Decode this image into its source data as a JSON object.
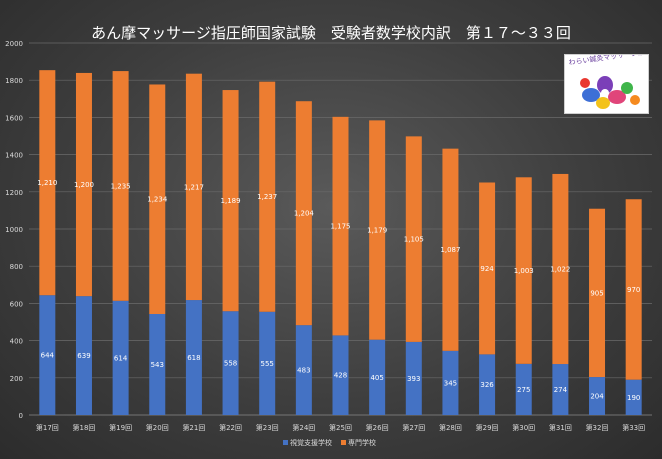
{
  "chart_data": {
    "type": "bar",
    "stacked": true,
    "title": "あん摩マッサージ指圧師国家試験　受験者数学校内訳　第１７～３３回",
    "categories": [
      "第17回",
      "第18回",
      "第19回",
      "第20回",
      "第21回",
      "第22回",
      "第23回",
      "第24回",
      "第25回",
      "第26回",
      "第27回",
      "第28回",
      "第29回",
      "第30回",
      "第31回",
      "第32回",
      "第33回"
    ],
    "series": [
      {
        "name": "視覚支援学校",
        "color": "#4472C4",
        "values": [
          644,
          639,
          614,
          543,
          618,
          558,
          555,
          483,
          428,
          405,
          393,
          345,
          326,
          275,
          274,
          204,
          190
        ]
      },
      {
        "name": "専門学校",
        "color": "#ED7D31",
        "values": [
          1210,
          1200,
          1235,
          1234,
          1217,
          1189,
          1237,
          1204,
          1175,
          1179,
          1105,
          1087,
          924,
          1003,
          1022,
          905,
          970
        ]
      }
    ],
    "ylim": [
      0,
      2000
    ],
    "yticks": [
      0,
      200,
      400,
      600,
      800,
      1000,
      1200,
      1400,
      1600,
      1800,
      2000
    ],
    "grid": true,
    "legend": "bottom"
  },
  "logo": {
    "text": "わらい鍼灸マッサージ治療院"
  }
}
